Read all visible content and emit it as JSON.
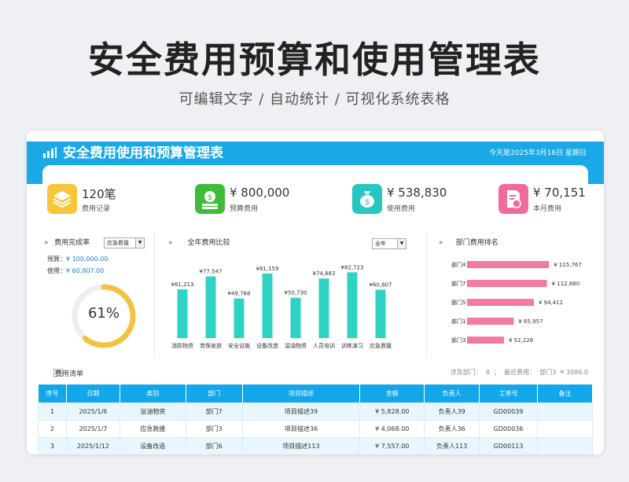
{
  "hero": {
    "title": "安全费用预算和使用管理表",
    "subtitle": "可编辑文字 / 自动统计 / 可视化系统表格"
  },
  "banner": {
    "title": "安全费用使用和预算管理表",
    "date": "今天是2025年3月16日 星期日"
  },
  "stats": [
    {
      "value": "120笔",
      "label": "费用记录",
      "color": "#f7c638",
      "icon": "layers-icon"
    },
    {
      "value": "¥ 800,000",
      "label": "预算费用",
      "color": "#3fbb3a",
      "icon": "money-stack-icon"
    },
    {
      "value": "¥ 538,830",
      "label": "使用费用",
      "color": "#26c7c2",
      "icon": "money-bag-icon"
    },
    {
      "value": "¥ 70,151",
      "label": "本月费用",
      "color": "#f06b9b",
      "icon": "document-money-icon"
    }
  ],
  "completion": {
    "heading": "费用完成率",
    "select": "应急救援",
    "budget_label": "预算：",
    "budget_value": "¥ 100,000.00",
    "used_label": "使用：",
    "used_value": "¥ 60,807.00",
    "percent_text": "61%",
    "percent": 0.61,
    "ring_color": "#f5c142"
  },
  "chart_data": [
    {
      "type": "bar",
      "title": "全年费用比较",
      "select": "全年",
      "categories": [
        "消防物资",
        "劳保发放",
        "安全设施",
        "设备改造",
        "溢油物资",
        "人员培训",
        "训练演习",
        "应急救援"
      ],
      "values": [
        61213,
        77547,
        49768,
        81159,
        50730,
        74883,
        82723,
        60807
      ],
      "labels": [
        "¥61,213",
        "¥77,547",
        "¥49,768",
        "¥81,159",
        "¥50,730",
        "¥74,883",
        "¥82,723",
        "¥60,807"
      ],
      "color": "#2fd3c3"
    },
    {
      "type": "bar",
      "orientation": "horizontal",
      "title": "部门费用排名",
      "categories": [
        "部门4",
        "部门7",
        "部门5",
        "部门1",
        "部门3"
      ],
      "values": [
        115767,
        112880,
        94411,
        65957,
        52226
      ],
      "labels": [
        "¥ 115,767",
        "¥ 112,880",
        "¥ 94,411",
        "¥ 65,957",
        "¥ 52,226"
      ],
      "color": "#f27aa3"
    }
  ],
  "list": {
    "title": "费用清单",
    "summary": "涉及部门：  8  ；  最近费用：  部门3  ¥ 3096.0"
  },
  "table": {
    "headers": [
      "序号",
      "日期",
      "类别",
      "部门",
      "项目描述",
      "金额",
      "负责人",
      "工单号",
      "备注"
    ],
    "rows": [
      [
        "1",
        "2025/1/6",
        "溢油物资",
        "部门7",
        "项目描述39",
        "¥ 5,828.00",
        "负责人39",
        "GD00039",
        ""
      ],
      [
        "2",
        "2025/1/7",
        "应急救援",
        "部门3",
        "项目描述36",
        "¥ 4,068.00",
        "负责人36",
        "GD00036",
        ""
      ],
      [
        "3",
        "2025/1/12",
        "设备改造",
        "部门6",
        "项目描述113",
        "¥ 7,557.00",
        "负责人113",
        "GD00113",
        ""
      ]
    ]
  }
}
